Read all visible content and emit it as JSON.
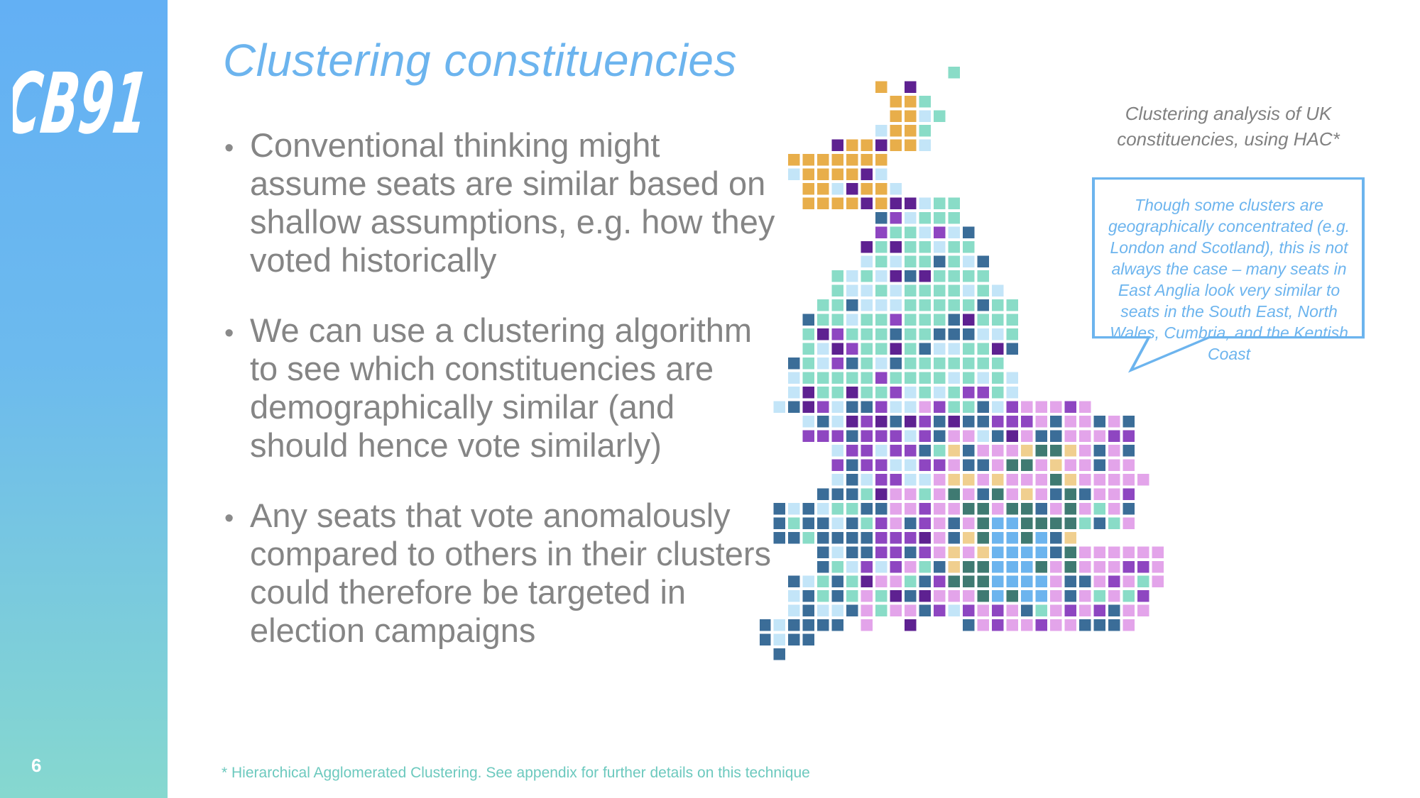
{
  "sidebar": {
    "logo_text": "CB91",
    "page_number": "6"
  },
  "title": "Clustering constituencies",
  "bullets": [
    "Conventional thinking might assume seats are similar based on shallow assumptions, e.g. how they voted historically",
    "We can use a clustering algorithm to see which constituencies are demographically similar (and should hence vote similarly)",
    "Any seats that vote anomalously compared to others in their clusters could therefore be targeted in election campaigns"
  ],
  "map": {
    "caption": "Clustering analysis of UK constituencies, using HAC*",
    "callout": "Though some clusters are geographically concentrated (e.g. London and Scotland), this is not always the case – many seats in East Anglia look very similar to seats in the South East, North Wales, Cumbria, and the Kentish Coast",
    "cluster_colors": [
      "#e8ae4a",
      "#89dcc7",
      "#c3e5f8",
      "#3b6d98",
      "#5e2191",
      "#8e46c1",
      "#e3a4ea",
      "#3f7a72",
      "#6cb4ee",
      "#f0cf8f"
    ]
  },
  "footnote": "* Hierarchical Agglomerated Clustering. See appendix for further details on this technique"
}
